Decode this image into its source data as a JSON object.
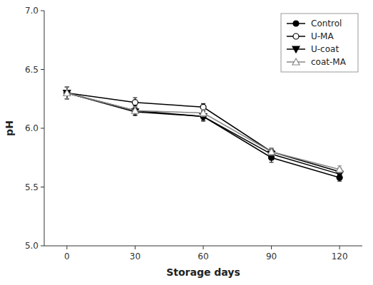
{
  "chart_data": {
    "type": "line",
    "xlabel": "Storage days",
    "ylabel": "pH",
    "x": [
      0,
      30,
      60,
      90,
      120
    ],
    "xlim": [
      -10,
      130
    ],
    "xticks": [
      0,
      30,
      60,
      90,
      120
    ],
    "ylim": [
      5.0,
      7.0
    ],
    "yticks": [
      {
        "value": 5.0,
        "label": "5.0"
      },
      5.5,
      {
        "value": 6.0,
        "label": "6.0"
      },
      6.5,
      {
        "value": 7.0,
        "label": "7.0"
      }
    ],
    "grid": false,
    "legend": "upper-right",
    "series": [
      {
        "name": "Control",
        "color": "#000000",
        "marker": "circle",
        "line_style": "solid",
        "values": [
          6.3,
          6.15,
          6.1,
          5.75,
          5.58
        ],
        "errors": [
          0.05,
          0.04,
          0.03,
          0.04,
          0.03
        ]
      },
      {
        "name": "U-MA",
        "color": "#000000",
        "marker": "circle-open",
        "line_style": "solid",
        "values": [
          6.3,
          6.22,
          6.18,
          5.8,
          5.63
        ],
        "errors": [
          0.05,
          0.04,
          0.03,
          0.03,
          0.03
        ]
      },
      {
        "name": "U-coat",
        "color": "#000000",
        "marker": "triangle-down",
        "line_style": "solid",
        "values": [
          6.3,
          6.14,
          6.1,
          5.78,
          5.61
        ],
        "errors": [
          0.05,
          0.03,
          0.04,
          0.03,
          0.03
        ]
      },
      {
        "name": "coat-MA",
        "color": "#888888",
        "marker": "triangle-up-open",
        "line_style": "solid",
        "values": [
          6.3,
          6.15,
          6.13,
          5.8,
          5.65
        ],
        "errors": [
          0.05,
          0.03,
          0.03,
          0.03,
          0.03
        ]
      }
    ]
  }
}
